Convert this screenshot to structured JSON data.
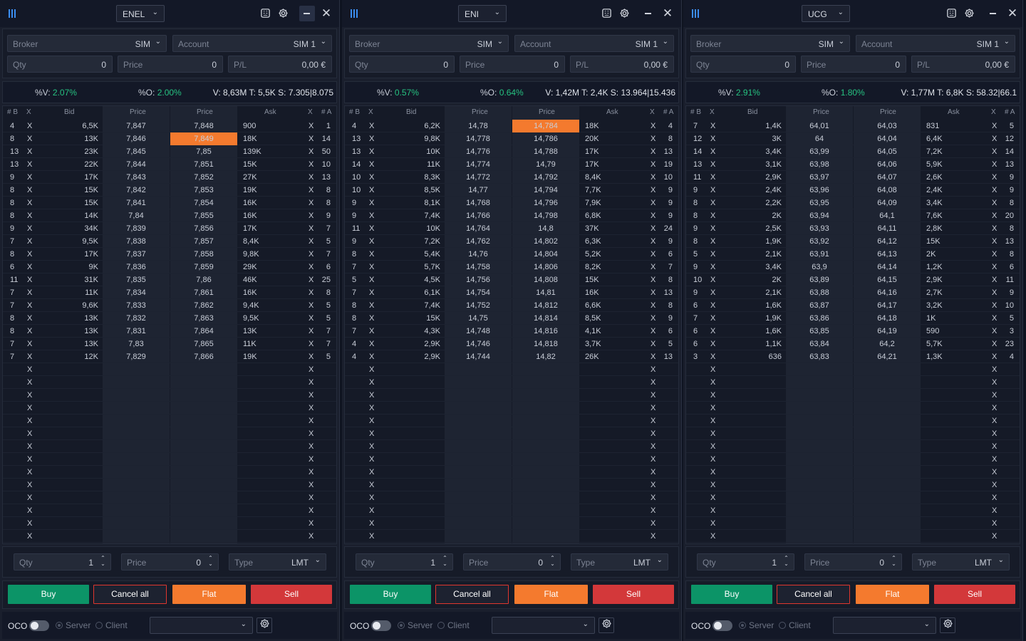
{
  "panels": [
    {
      "symbol": "ENEL",
      "broker_label": "Broker",
      "broker_value": "SIM",
      "account_label": "Account",
      "account_value": "SIM 1",
      "qty_label": "Qty",
      "qty_value": "0",
      "price_label": "Price",
      "price_value": "0",
      "pl_label": "P/L",
      "pl_value": "0,00 €",
      "stats": {
        "pv_label": "%V:",
        "pv_value": "2.07%",
        "po_label": "%O:",
        "po_value": "2.00%",
        "vts": "V: 8,63M  T: 5,5K  S: 7.305|8.075"
      },
      "highlight": {
        "row": 1,
        "side": "ask"
      },
      "rows": [
        [
          "4",
          "X",
          "6,5K",
          "7,847",
          "7,848",
          "900",
          "X",
          "1"
        ],
        [
          "8",
          "X",
          "13K",
          "7,846",
          "7,849",
          "18K",
          "X",
          "14"
        ],
        [
          "13",
          "X",
          "23K",
          "7,845",
          "7,85",
          "139K",
          "X",
          "50"
        ],
        [
          "13",
          "X",
          "22K",
          "7,844",
          "7,851",
          "15K",
          "X",
          "10"
        ],
        [
          "9",
          "X",
          "17K",
          "7,843",
          "7,852",
          "27K",
          "X",
          "13"
        ],
        [
          "8",
          "X",
          "15K",
          "7,842",
          "7,853",
          "19K",
          "X",
          "8"
        ],
        [
          "8",
          "X",
          "15K",
          "7,841",
          "7,854",
          "16K",
          "X",
          "8"
        ],
        [
          "8",
          "X",
          "14K",
          "7,84",
          "7,855",
          "16K",
          "X",
          "9"
        ],
        [
          "9",
          "X",
          "34K",
          "7,839",
          "7,856",
          "17K",
          "X",
          "7"
        ],
        [
          "7",
          "X",
          "9,5K",
          "7,838",
          "7,857",
          "8,4K",
          "X",
          "5"
        ],
        [
          "8",
          "X",
          "17K",
          "7,837",
          "7,858",
          "9,8K",
          "X",
          "7"
        ],
        [
          "6",
          "X",
          "9K",
          "7,836",
          "7,859",
          "29K",
          "X",
          "6"
        ],
        [
          "11",
          "X",
          "31K",
          "7,835",
          "7,86",
          "46K",
          "X",
          "25"
        ],
        [
          "7",
          "X",
          "11K",
          "7,834",
          "7,861",
          "16K",
          "X",
          "8"
        ],
        [
          "7",
          "X",
          "9,6K",
          "7,833",
          "7,862",
          "9,4K",
          "X",
          "5"
        ],
        [
          "8",
          "X",
          "13K",
          "7,832",
          "7,863",
          "9,5K",
          "X",
          "5"
        ],
        [
          "8",
          "X",
          "13K",
          "7,831",
          "7,864",
          "13K",
          "X",
          "7"
        ],
        [
          "7",
          "X",
          "13K",
          "7,83",
          "7,865",
          "11K",
          "X",
          "7"
        ],
        [
          "7",
          "X",
          "12K",
          "7,829",
          "7,866",
          "19K",
          "X",
          "5"
        ]
      ]
    },
    {
      "symbol": "ENI",
      "broker_label": "Broker",
      "broker_value": "SIM",
      "account_label": "Account",
      "account_value": "SIM 1",
      "qty_label": "Qty",
      "qty_value": "0",
      "price_label": "Price",
      "price_value": "0",
      "pl_label": "P/L",
      "pl_value": "0,00 €",
      "stats": {
        "pv_label": "%V:",
        "pv_value": "0.57%",
        "po_label": "%O:",
        "po_value": "0.64%",
        "vts": "V: 1,42M  T: 2,4K  S: 13.964|15.436"
      },
      "highlight": {
        "row": 0,
        "side": "ask"
      },
      "rows": [
        [
          "4",
          "X",
          "6,2K",
          "14,78",
          "14,784",
          "18K",
          "X",
          "4"
        ],
        [
          "13",
          "X",
          "9,8K",
          "14,778",
          "14,786",
          "20K",
          "X",
          "8"
        ],
        [
          "13",
          "X",
          "10K",
          "14,776",
          "14,788",
          "17K",
          "X",
          "13"
        ],
        [
          "14",
          "X",
          "11K",
          "14,774",
          "14,79",
          "17K",
          "X",
          "19"
        ],
        [
          "10",
          "X",
          "8,3K",
          "14,772",
          "14,792",
          "8,4K",
          "X",
          "10"
        ],
        [
          "10",
          "X",
          "8,5K",
          "14,77",
          "14,794",
          "7,7K",
          "X",
          "9"
        ],
        [
          "9",
          "X",
          "8,1K",
          "14,768",
          "14,796",
          "7,9K",
          "X",
          "9"
        ],
        [
          "9",
          "X",
          "7,4K",
          "14,766",
          "14,798",
          "6,8K",
          "X",
          "9"
        ],
        [
          "11",
          "X",
          "10K",
          "14,764",
          "14,8",
          "37K",
          "X",
          "24"
        ],
        [
          "9",
          "X",
          "7,2K",
          "14,762",
          "14,802",
          "6,3K",
          "X",
          "9"
        ],
        [
          "8",
          "X",
          "5,4K",
          "14,76",
          "14,804",
          "5,2K",
          "X",
          "6"
        ],
        [
          "7",
          "X",
          "5,7K",
          "14,758",
          "14,806",
          "8,2K",
          "X",
          "7"
        ],
        [
          "5",
          "X",
          "4,5K",
          "14,756",
          "14,808",
          "15K",
          "X",
          "8"
        ],
        [
          "7",
          "X",
          "6,1K",
          "14,754",
          "14,81",
          "16K",
          "X",
          "13"
        ],
        [
          "8",
          "X",
          "7,4K",
          "14,752",
          "14,812",
          "6,6K",
          "X",
          "8"
        ],
        [
          "8",
          "X",
          "15K",
          "14,75",
          "14,814",
          "8,5K",
          "X",
          "9"
        ],
        [
          "7",
          "X",
          "4,3K",
          "14,748",
          "14,816",
          "4,1K",
          "X",
          "6"
        ],
        [
          "4",
          "X",
          "2,9K",
          "14,746",
          "14,818",
          "3,7K",
          "X",
          "5"
        ],
        [
          "4",
          "X",
          "2,9K",
          "14,744",
          "14,82",
          "26K",
          "X",
          "13"
        ]
      ]
    },
    {
      "symbol": "UCG",
      "broker_label": "Broker",
      "broker_value": "SIM",
      "account_label": "Account",
      "account_value": "SIM 1",
      "qty_label": "Qty",
      "qty_value": "0",
      "price_label": "Price",
      "price_value": "0",
      "pl_label": "P/L",
      "pl_value": "0,00 €",
      "stats": {
        "pv_label": "%V:",
        "pv_value": "2.91%",
        "po_label": "%O:",
        "po_value": "1.80%",
        "vts": "V: 1,77M  T: 6,8K  S: 58.32|66.1"
      },
      "highlight": null,
      "rows": [
        [
          "7",
          "X",
          "1,4K",
          "64,01",
          "64,03",
          "831",
          "X",
          "5"
        ],
        [
          "12",
          "X",
          "3K",
          "64",
          "64,04",
          "6,4K",
          "X",
          "12"
        ],
        [
          "14",
          "X",
          "3,4K",
          "63,99",
          "64,05",
          "7,2K",
          "X",
          "14"
        ],
        [
          "13",
          "X",
          "3,1K",
          "63,98",
          "64,06",
          "5,9K",
          "X",
          "13"
        ],
        [
          "11",
          "X",
          "2,9K",
          "63,97",
          "64,07",
          "2,6K",
          "X",
          "9"
        ],
        [
          "9",
          "X",
          "2,4K",
          "63,96",
          "64,08",
          "2,4K",
          "X",
          "9"
        ],
        [
          "8",
          "X",
          "2,2K",
          "63,95",
          "64,09",
          "3,4K",
          "X",
          "8"
        ],
        [
          "8",
          "X",
          "2K",
          "63,94",
          "64,1",
          "7,6K",
          "X",
          "20"
        ],
        [
          "9",
          "X",
          "2,5K",
          "63,93",
          "64,11",
          "2,8K",
          "X",
          "8"
        ],
        [
          "8",
          "X",
          "1,9K",
          "63,92",
          "64,12",
          "15K",
          "X",
          "13"
        ],
        [
          "5",
          "X",
          "2,1K",
          "63,91",
          "64,13",
          "2K",
          "X",
          "8"
        ],
        [
          "9",
          "X",
          "3,4K",
          "63,9",
          "64,14",
          "1,2K",
          "X",
          "6"
        ],
        [
          "10",
          "X",
          "2K",
          "63,89",
          "64,15",
          "2,9K",
          "X",
          "11"
        ],
        [
          "9",
          "X",
          "2,1K",
          "63,88",
          "64,16",
          "2,7K",
          "X",
          "9"
        ],
        [
          "6",
          "X",
          "1,6K",
          "63,87",
          "64,17",
          "3,2K",
          "X",
          "10"
        ],
        [
          "7",
          "X",
          "1,9K",
          "63,86",
          "64,18",
          "1K",
          "X",
          "5"
        ],
        [
          "6",
          "X",
          "1,6K",
          "63,85",
          "64,19",
          "590",
          "X",
          "3"
        ],
        [
          "6",
          "X",
          "1,1K",
          "63,84",
          "64,2",
          "5,7K",
          "X",
          "23"
        ],
        [
          "3",
          "X",
          "636",
          "63,83",
          "64,21",
          "1,3K",
          "X",
          "4"
        ]
      ]
    }
  ],
  "empty_row_marker": "X",
  "book_headers": {
    "nb": "# B",
    "xb": "X",
    "bid": "Bid",
    "bprice": "Price",
    "aprice": "Price",
    "ask": "Ask",
    "xa": "X",
    "na": "# A"
  },
  "order": {
    "qty_label": "Qty",
    "qty_value": "1",
    "price_label": "Price",
    "price_value": "0",
    "type_label": "Type",
    "type_value": "LMT"
  },
  "buttons": {
    "buy": "Buy",
    "cancel_all": "Cancel all",
    "flat": "Flat",
    "sell": "Sell"
  },
  "footer": {
    "oco": "OCO",
    "server": "Server",
    "client": "Client"
  },
  "colors": {
    "buy": "#0c9467",
    "flat": "#f47a2e",
    "sell": "#d3383a",
    "cancel_border": "#e0362e",
    "positive": "#26c281",
    "accent": "#3b8df0"
  }
}
